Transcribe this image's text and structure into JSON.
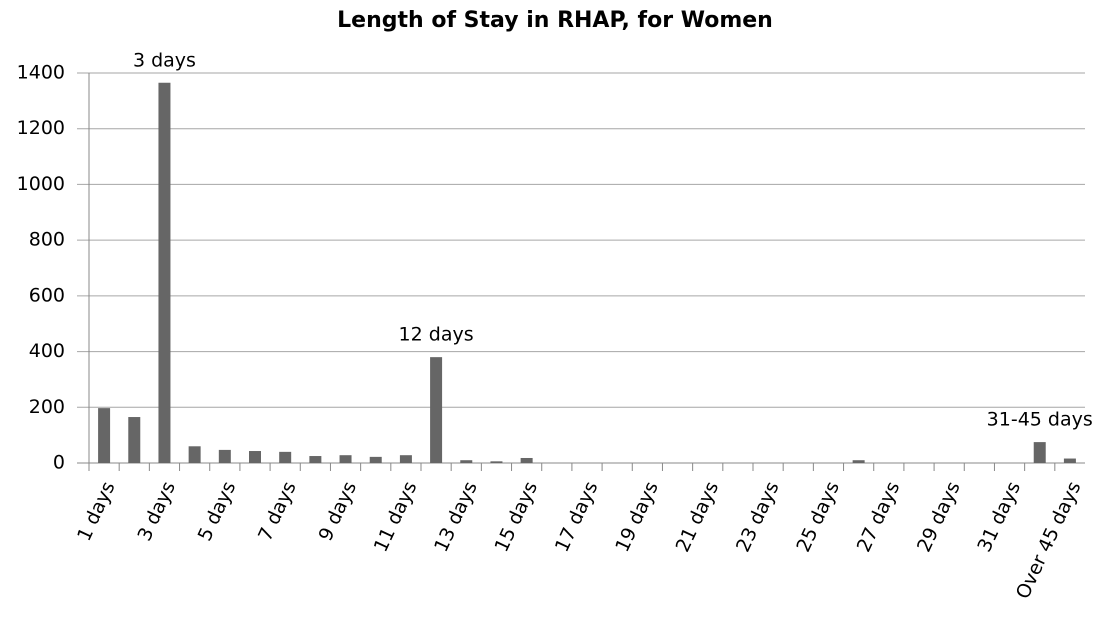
{
  "chart_data": {
    "type": "bar",
    "title": "Length of Stay in RHAP, for Women",
    "categories": [
      "1 days",
      null,
      "3 days",
      null,
      "5 days",
      null,
      "7 days",
      null,
      "9 days",
      null,
      "11 days",
      null,
      "13 days",
      null,
      "15 days",
      null,
      "17 days",
      null,
      "19 days",
      null,
      "21 days",
      null,
      "23 days",
      null,
      "25 days",
      null,
      "27 days",
      null,
      "29 days",
      null,
      "31 days",
      null,
      "Over 45 days"
    ],
    "values": [
      197,
      165,
      1365,
      60,
      47,
      43,
      40,
      25,
      28,
      22,
      28,
      380,
      10,
      6,
      18,
      0,
      0,
      0,
      0,
      0,
      0,
      0,
      0,
      0,
      0,
      10,
      0,
      0,
      0,
      0,
      0,
      75,
      16
    ],
    "annotations": [
      {
        "text": "3 days",
        "category": 2
      },
      {
        "text": "12 days",
        "category": 11
      },
      {
        "text": "31-45 days",
        "category": 31
      }
    ],
    "color": "#666666",
    "ylim": [
      0,
      1400
    ],
    "yticks": [
      0,
      200,
      400,
      600,
      800,
      1000,
      1200,
      1400
    ],
    "grid": true
  }
}
